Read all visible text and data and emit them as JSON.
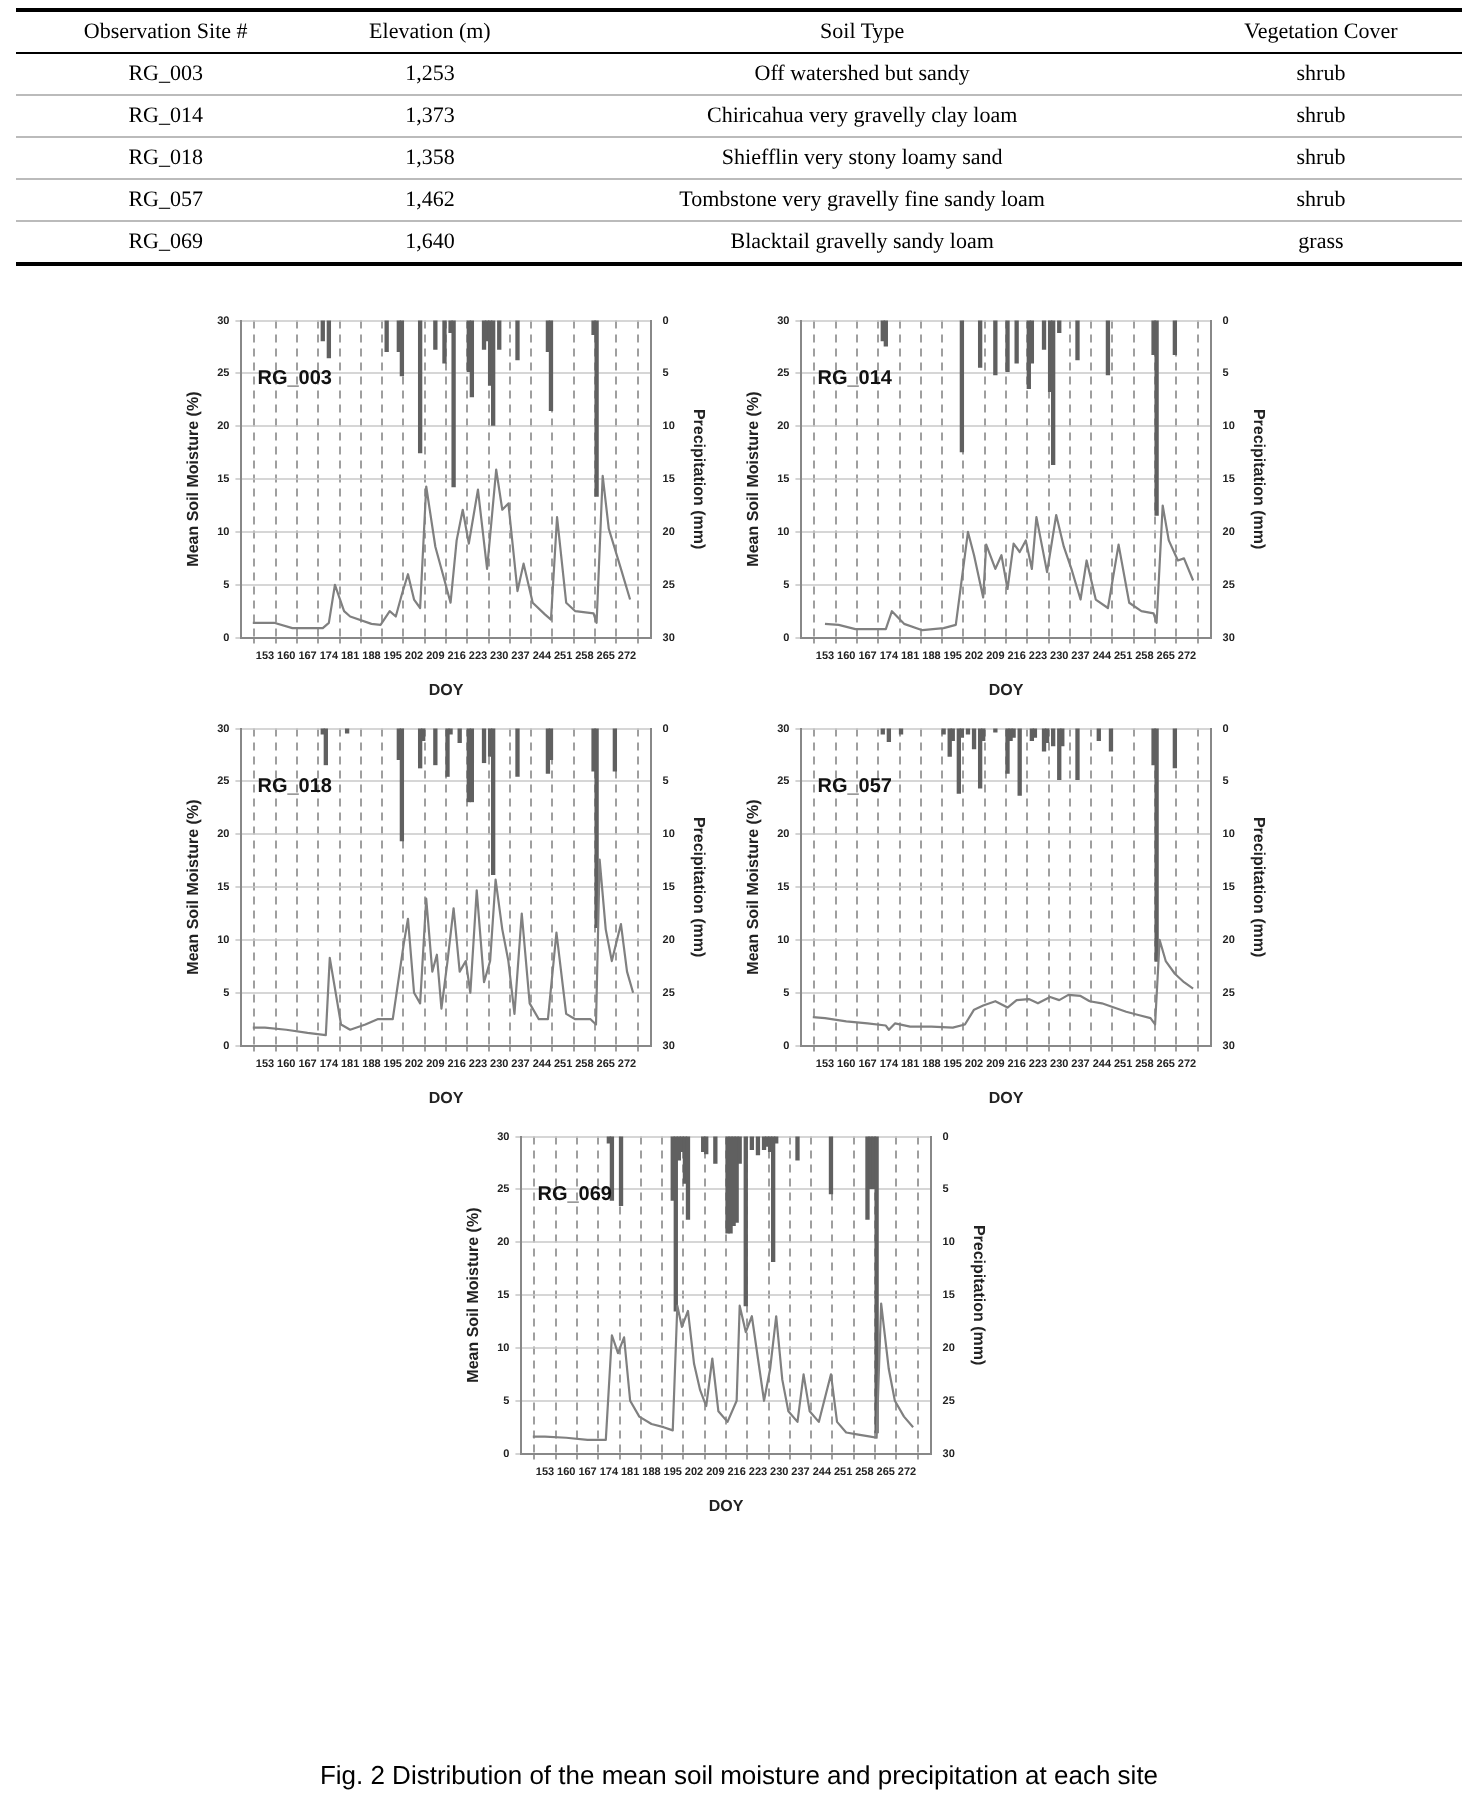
{
  "chart_data": [
    {
      "type": "other",
      "annotations": [
        "Observation Site #",
        "Elevation (m)",
        "Soil Type",
        "Vegetation Cover",
        "RG_003",
        "1,253",
        "Off watershed but sandy",
        "shrub",
        "RG_014",
        "1,373",
        "Chiricahua very gravelly clay loam",
        "shrub",
        "RG_018",
        "1,358",
        "Shiefflin very stony loamy sand",
        "shrub",
        "RG_057",
        "1,462",
        "Tombstone very gravelly fine sandy loam",
        "shrub",
        "RG_069",
        "1,640",
        "Blacktail gravelly sandy loam",
        "grass"
      ]
    },
    {
      "type": "line",
      "annotations": [
        "RG_003"
      ],
      "xlabel": "DOY",
      "ylabel": "Mean Soil Moisture (%)",
      "y2label": "Precipitation (mm)",
      "xlim": [
        149,
        276
      ],
      "xticks": [
        153,
        160,
        167,
        174,
        181,
        188,
        195,
        202,
        209,
        216,
        223,
        230,
        237,
        244,
        251,
        258,
        265,
        272
      ],
      "ylim": [
        0,
        30
      ],
      "yticks": [
        0,
        5,
        10,
        15,
        20,
        25,
        30
      ],
      "y2lim": [
        30,
        0
      ],
      "y2ticks": [
        0,
        5,
        10,
        15,
        20,
        25,
        30
      ],
      "grid": true,
      "series": [
        {
          "type": "line",
          "color": "#808080",
          "x": [
            149,
            156,
            162,
            172,
            174,
            176,
            179,
            181,
            188,
            191,
            194,
            196,
            198,
            200,
            202,
            204,
            206,
            209,
            211,
            214,
            216,
            218,
            220,
            223,
            226,
            229,
            231,
            233,
            236,
            238,
            241,
            245,
            247,
            249,
            252,
            255,
            261,
            262,
            264,
            266,
            270,
            273
          ],
          "values": [
            1.4,
            1.4,
            0.9,
            0.9,
            1.4,
            5.0,
            2.5,
            2.0,
            1.3,
            1.2,
            2.5,
            2.0,
            4.1,
            6.0,
            3.6,
            2.8,
            14.3,
            8.6,
            6.5,
            3.3,
            9.2,
            12.1,
            8.9,
            14.0,
            6.5,
            15.9,
            12.1,
            12.7,
            4.4,
            7.0,
            3.3,
            2.2,
            1.7,
            11.4,
            3.3,
            2.5,
            2.3,
            1.4,
            15.3,
            10.3,
            6.5,
            3.6
          ]
        },
        {
          "type": "bar",
          "axis": "y2",
          "color": "#606060",
          "x": [
            172,
            174,
            193,
            197,
            198,
            204,
            209,
            212,
            214,
            215,
            220,
            221,
            225,
            226,
            227,
            228,
            230,
            236,
            246,
            247,
            261,
            262
          ],
          "values": [
            1.9,
            3.5,
            2.9,
            2.9,
            5.2,
            12.5,
            2.7,
            4.0,
            1.1,
            15.7,
            4.8,
            7.2,
            2.7,
            1.9,
            6.1,
            9.9,
            2.7,
            3.7,
            2.9,
            8.5,
            1.3,
            16.6
          ]
        }
      ]
    },
    {
      "type": "line",
      "annotations": [
        "RG_014"
      ],
      "xlabel": "DOY",
      "ylabel": "Mean Soil Moisture (%)",
      "y2label": "Precipitation (mm)",
      "xlim": [
        149,
        276
      ],
      "xticks": [
        153,
        160,
        167,
        174,
        181,
        188,
        195,
        202,
        209,
        216,
        223,
        230,
        237,
        244,
        251,
        258,
        265,
        272
      ],
      "ylim": [
        0,
        30
      ],
      "yticks": [
        0,
        5,
        10,
        15,
        20,
        25,
        30
      ],
      "y2lim": [
        30,
        0
      ],
      "y2ticks": [
        0,
        5,
        10,
        15,
        20,
        25,
        30
      ],
      "grid": true,
      "series": [
        {
          "type": "line",
          "color": "#808080",
          "x": [
            153,
            157.5,
            163,
            173,
            175,
            179,
            185,
            192,
            196,
            200,
            202,
            205,
            206,
            209,
            211,
            213,
            215,
            217,
            219,
            221,
            222.5,
            226,
            229,
            231.5,
            234,
            237,
            239,
            242,
            246,
            249.5,
            253,
            257,
            261,
            262,
            264,
            266,
            269,
            271,
            274
          ],
          "values": [
            1.3,
            1.2,
            0.8,
            0.8,
            2.5,
            1.3,
            0.7,
            0.9,
            1.2,
            10.0,
            7.8,
            3.8,
            8.8,
            6.5,
            7.8,
            4.6,
            8.9,
            8.1,
            9.2,
            6.5,
            11.4,
            6.2,
            11.6,
            8.6,
            6.5,
            3.6,
            7.3,
            3.6,
            2.8,
            8.8,
            3.3,
            2.5,
            2.3,
            1.4,
            12.5,
            9.2,
            7.3,
            7.5,
            5.4
          ]
        },
        {
          "type": "bar",
          "axis": "y2",
          "color": "#606060",
          "x": [
            172,
            173,
            198,
            204,
            209,
            213,
            216,
            220,
            221,
            225,
            227,
            228,
            230,
            236,
            246,
            261,
            262,
            268
          ],
          "values": [
            1.9,
            2.4,
            12.4,
            4.4,
            5.1,
            4.8,
            4.0,
            6.4,
            4.0,
            2.7,
            6.7,
            13.6,
            1.1,
            3.7,
            5.1,
            3.2,
            18.4,
            3.2
          ]
        }
      ]
    },
    {
      "type": "line",
      "annotations": [
        "RG_018"
      ],
      "xlabel": "DOY",
      "ylabel": "Mean Soil Moisture (%)",
      "y2label": "Precipitation (mm)",
      "xlim": [
        149,
        276
      ],
      "xticks": [
        153,
        160,
        167,
        174,
        181,
        188,
        195,
        202,
        209,
        216,
        223,
        230,
        237,
        244,
        251,
        258,
        265,
        272
      ],
      "ylim": [
        0,
        30
      ],
      "yticks": [
        0,
        5,
        10,
        15,
        20,
        25,
        30
      ],
      "y2lim": [
        30,
        0
      ],
      "y2ticks": [
        0,
        5,
        10,
        15,
        20,
        25,
        30
      ],
      "grid": true,
      "series": [
        {
          "type": "line",
          "color": "#808080",
          "x": [
            149,
            153,
            160,
            167,
            173,
            174.3,
            178,
            181,
            186,
            190,
            195,
            198.6,
            200,
            202,
            204,
            206,
            208,
            209.5,
            211,
            213,
            215,
            217,
            219,
            220.5,
            222.6,
            225,
            227,
            228.8,
            231,
            233,
            235,
            237.4,
            240,
            243,
            246,
            248.8,
            252,
            255,
            260,
            261.8,
            263,
            265,
            267,
            270,
            272,
            274
          ],
          "values": [
            1.7,
            1.7,
            1.5,
            1.2,
            1.0,
            8.3,
            2.0,
            1.5,
            2.0,
            2.5,
            2.5,
            9.6,
            12.0,
            5.0,
            4.0,
            13.9,
            7.0,
            8.6,
            3.5,
            8.0,
            13.0,
            7.0,
            8.0,
            5.0,
            14.7,
            6.0,
            8.0,
            15.7,
            11.0,
            8.0,
            3.0,
            12.5,
            4.0,
            2.5,
            2.5,
            10.7,
            3.0,
            2.5,
            2.5,
            2.0,
            17.6,
            11.0,
            8.0,
            11.5,
            7.0,
            5.0
          ]
        },
        {
          "type": "bar",
          "axis": "y2",
          "color": "#606060",
          "x": [
            172,
            173,
            180,
            197,
            198,
            204,
            205,
            209,
            213,
            214,
            217,
            220,
            221,
            225,
            227,
            228,
            236,
            246,
            247,
            261,
            262,
            268
          ],
          "values": [
            0.5,
            3.4,
            0.4,
            2.9,
            10.6,
            3.7,
            1.1,
            3.4,
            4.5,
            0.5,
            1.3,
            6.9,
            6.9,
            3.2,
            2.6,
            13.8,
            4.5,
            4.2,
            2.9,
            4.0,
            18.8,
            4.0
          ]
        }
      ]
    },
    {
      "type": "line",
      "annotations": [
        "RG_057"
      ],
      "xlabel": "DOY",
      "ylabel": "Mean Soil Moisture (%)",
      "y2label": "Precipitation (mm)",
      "xlim": [
        149,
        276
      ],
      "xticks": [
        153,
        160,
        167,
        174,
        181,
        188,
        195,
        202,
        209,
        216,
        223,
        230,
        237,
        244,
        251,
        258,
        265,
        272
      ],
      "ylim": [
        0,
        30
      ],
      "yticks": [
        0,
        5,
        10,
        15,
        20,
        25,
        30
      ],
      "y2lim": [
        30,
        0
      ],
      "y2ticks": [
        0,
        5,
        10,
        15,
        20,
        25,
        30
      ],
      "grid": true,
      "series": [
        {
          "type": "line",
          "color": "#808080",
          "x": [
            149,
            153,
            160,
            167,
            173,
            174,
            176,
            181,
            188,
            195,
            199,
            202,
            205,
            209,
            213,
            216,
            220,
            223,
            227,
            230,
            233,
            237,
            240,
            244,
            248,
            252,
            256,
            260,
            261.5,
            263,
            265,
            268,
            271,
            274
          ],
          "values": [
            2.7,
            2.6,
            2.3,
            2.1,
            1.9,
            1.5,
            2.1,
            1.8,
            1.8,
            1.7,
            2.0,
            3.4,
            3.8,
            4.2,
            3.6,
            4.3,
            4.4,
            4.0,
            4.6,
            4.3,
            4.8,
            4.7,
            4.2,
            4.0,
            3.6,
            3.2,
            2.9,
            2.6,
            2.0,
            10.0,
            8.0,
            6.8,
            6.0,
            5.4
          ]
        },
        {
          "type": "bar",
          "axis": "y2",
          "color": "#606060",
          "x": [
            172,
            174,
            178,
            192,
            194,
            195,
            197,
            198,
            200,
            202,
            204,
            205,
            209,
            213,
            214,
            215,
            217,
            221,
            222,
            225,
            226,
            228,
            230,
            231,
            236,
            243,
            247,
            261,
            262,
            268
          ],
          "values": [
            0.5,
            1.2,
            0.5,
            0.5,
            2.6,
            1.1,
            6.1,
            0.8,
            0.5,
            1.9,
            5.6,
            1.1,
            0.3,
            4.2,
            1.1,
            0.8,
            6.3,
            1.1,
            0.8,
            2.1,
            1.3,
            1.6,
            4.8,
            1.6,
            4.8,
            1.1,
            2.1,
            3.4,
            22,
            3.7
          ]
        }
      ]
    },
    {
      "type": "line",
      "annotations": [
        "RG_069",
        "Fig. 2 Distribution of the mean soil moisture and precipitation at each site"
      ],
      "xlabel": "DOY",
      "ylabel": "Mean Soil Moisture (%)",
      "y2label": "Precipitation (mm)",
      "xlim": [
        149,
        276
      ],
      "xticks": [
        153,
        160,
        167,
        174,
        181,
        188,
        195,
        202,
        209,
        216,
        223,
        230,
        237,
        244,
        251,
        258,
        265,
        272
      ],
      "ylim": [
        0,
        30
      ],
      "yticks": [
        0,
        5,
        10,
        15,
        20,
        25,
        30
      ],
      "y2lim": [
        30,
        0
      ],
      "y2ticks": [
        0,
        5,
        10,
        15,
        20,
        25,
        30
      ],
      "grid": true,
      "series": [
        {
          "type": "line",
          "color": "#808080",
          "x": [
            149,
            153,
            160,
            167,
            173,
            175,
            177,
            179,
            181,
            184,
            188,
            192,
            195,
            196.5,
            198,
            200,
            202,
            204,
            206,
            208,
            210,
            213,
            216,
            217,
            219,
            221,
            223,
            225,
            227,
            229,
            231,
            233,
            236,
            238,
            240,
            243,
            247,
            249,
            252,
            256,
            260,
            262,
            263.5,
            266,
            268,
            271,
            274
          ],
          "values": [
            1.6,
            1.6,
            1.5,
            1.3,
            1.3,
            11.2,
            9.5,
            11.0,
            5.0,
            3.5,
            2.8,
            2.5,
            2.2,
            14.0,
            12.0,
            13.5,
            8.5,
            6.0,
            4.5,
            9.0,
            4.0,
            3.0,
            5.0,
            14.0,
            11.5,
            13.0,
            9.0,
            5.0,
            8.0,
            13.0,
            7.0,
            4.0,
            3.0,
            7.5,
            4.0,
            3.0,
            7.5,
            3.0,
            2.0,
            1.8,
            1.6,
            1.5,
            14.2,
            8.0,
            5.0,
            3.5,
            2.5
          ]
        },
        {
          "type": "bar",
          "axis": "y2",
          "color": "#606060",
          "x": [
            174,
            175,
            178,
            195,
            196,
            197,
            198,
            199,
            200,
            205,
            206,
            209,
            213,
            214,
            215,
            216,
            217,
            219,
            221,
            223,
            225,
            226,
            227,
            228,
            229,
            236,
            247,
            259,
            260,
            261,
            262
          ],
          "values": [
            0.6,
            6.0,
            6.5,
            6.0,
            16.5,
            2.2,
            1.4,
            4.4,
            7.8,
            1.4,
            1.6,
            2.5,
            9.1,
            9.1,
            8.4,
            8.1,
            2.5,
            16,
            1.2,
            1.7,
            1.2,
            0.9,
            1.4,
            11.8,
            0.6,
            2.2,
            5.4,
            7.8,
            4.9,
            4.9,
            28
          ]
        }
      ]
    }
  ]
}
